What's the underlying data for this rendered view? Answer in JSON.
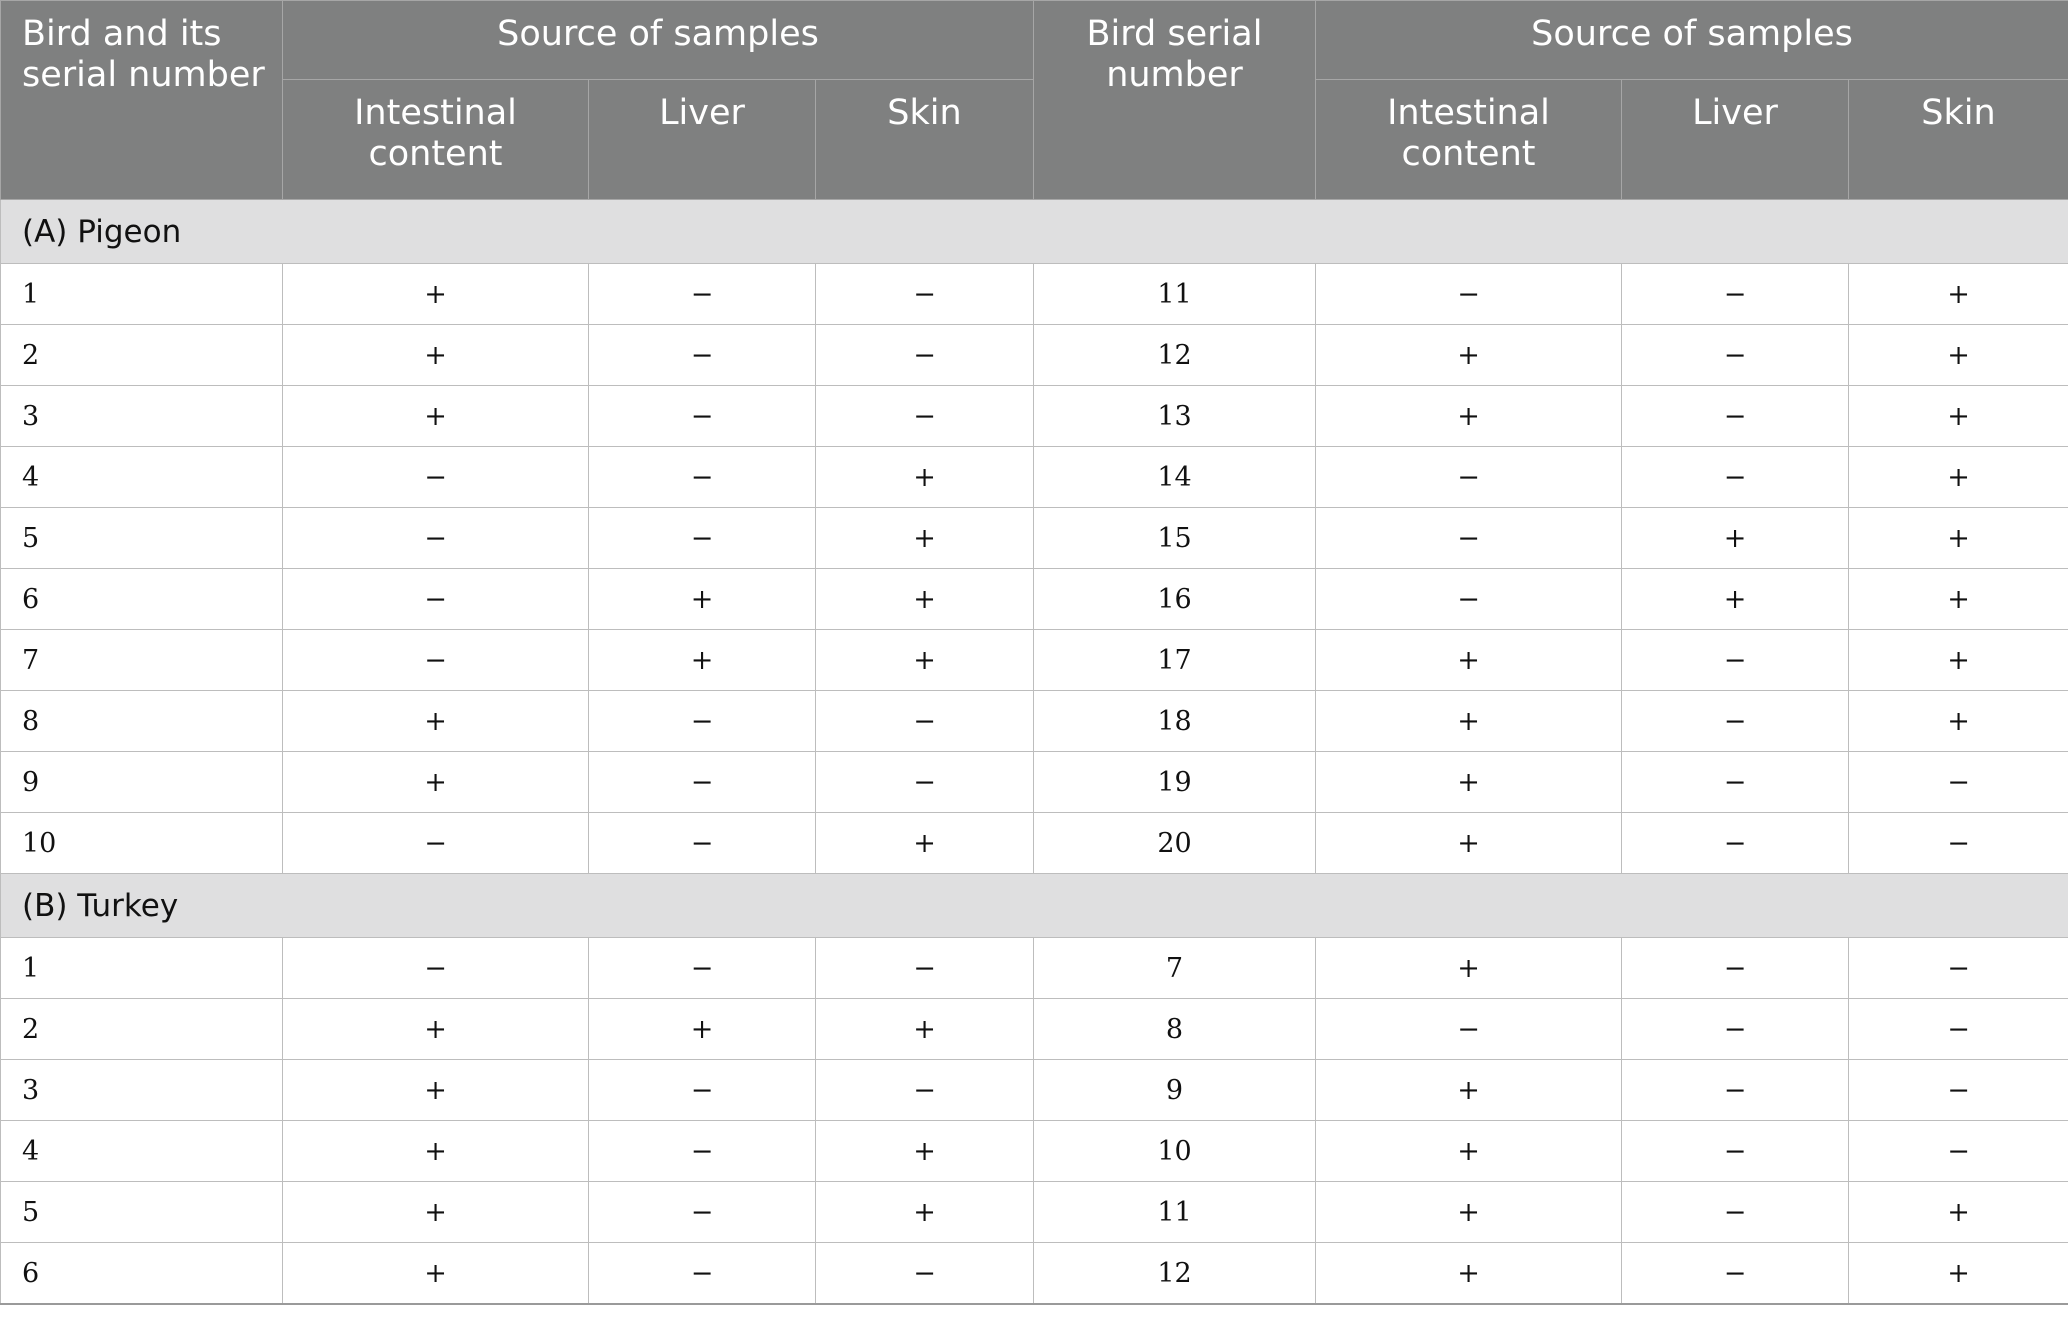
{
  "header": {
    "col1": "Bird and its serial number",
    "group_left": "Source of samples",
    "col5": "Bird serial number",
    "group_right": "Source of samples",
    "sub": [
      "Intestinal content",
      "Liver",
      "Skin"
    ]
  },
  "sections": [
    {
      "label": "(A) Pigeon",
      "rows": [
        [
          "1",
          "+",
          "−",
          "−",
          "11",
          "−",
          "−",
          "+"
        ],
        [
          "2",
          "+",
          "−",
          "−",
          "12",
          "+",
          "−",
          "+"
        ],
        [
          "3",
          "+",
          "−",
          "−",
          "13",
          "+",
          "−",
          "+"
        ],
        [
          "4",
          "−",
          "−",
          "+",
          "14",
          "−",
          "−",
          "+"
        ],
        [
          "5",
          "−",
          "−",
          "+",
          "15",
          "−",
          "+",
          "+"
        ],
        [
          "6",
          "−",
          "+",
          "+",
          "16",
          "−",
          "+",
          "+"
        ],
        [
          "7",
          "−",
          "+",
          "+",
          "17",
          "+",
          "−",
          "+"
        ],
        [
          "8",
          "+",
          "−",
          "−",
          "18",
          "+",
          "−",
          "+"
        ],
        [
          "9",
          "+",
          "−",
          "−",
          "19",
          "+",
          "−",
          "−"
        ],
        [
          "10",
          "−",
          "−",
          "+",
          "20",
          "+",
          "−",
          "−"
        ]
      ]
    },
    {
      "label": "(B) Turkey",
      "rows": [
        [
          "1",
          "−",
          "−",
          "−",
          "7",
          "+",
          "−",
          "−"
        ],
        [
          "2",
          "+",
          "+",
          "+",
          "8",
          "−",
          "−",
          "−"
        ],
        [
          "3",
          "+",
          "−",
          "−",
          "9",
          "+",
          "−",
          "−"
        ],
        [
          "4",
          "+",
          "−",
          "+",
          "10",
          "+",
          "−",
          "−"
        ],
        [
          "5",
          "+",
          "−",
          "+",
          "11",
          "+",
          "−",
          "+"
        ],
        [
          "6",
          "+",
          "−",
          "−",
          "12",
          "+",
          "−",
          "+"
        ]
      ]
    }
  ]
}
